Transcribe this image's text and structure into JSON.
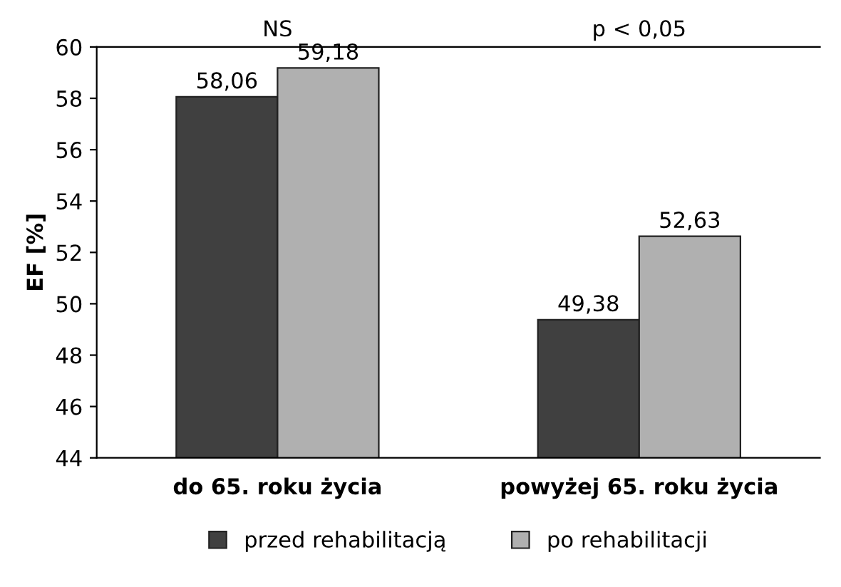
{
  "chart_data": {
    "type": "bar",
    "ylabel": "EF [%]",
    "categories": [
      "do 65. roku życia",
      "powyżej 65. roku życia"
    ],
    "series": [
      {
        "name": "przed rehabilitacją",
        "color": "#404040",
        "values": [
          58.06,
          49.38
        ],
        "value_labels": [
          "58,06",
          "49,38"
        ]
      },
      {
        "name": "po rehabilitacji",
        "color": "#b0b0b0",
        "values": [
          59.18,
          52.63
        ],
        "value_labels": [
          "59,18",
          "52,63"
        ]
      }
    ],
    "ylim": [
      44,
      60
    ],
    "yticks": [
      44,
      46,
      48,
      50,
      52,
      54,
      56,
      58,
      60
    ],
    "annotations": [
      "NS",
      "p < 0,05"
    ],
    "grid": false,
    "legend": "bottom"
  }
}
